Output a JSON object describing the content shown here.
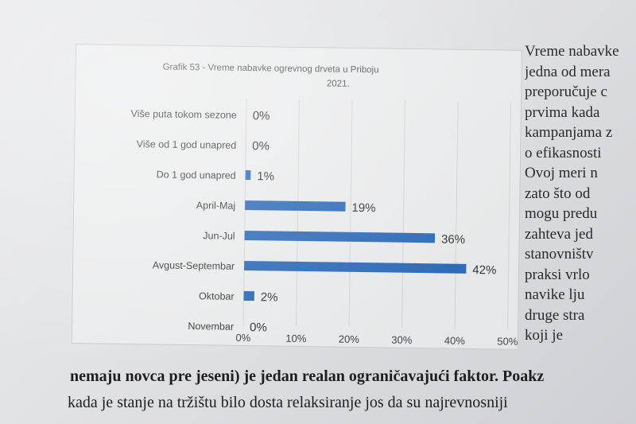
{
  "chart_data": {
    "type": "bar",
    "orientation": "horizontal",
    "title_line1": "Grafik 53 - Vreme nabavke ogrevnog drveta u Priboju",
    "title_line2": "2021.",
    "categories": [
      "Više puta tokom sezone",
      "Više od 1 god unapred",
      "Do 1 god unapred",
      "April-Maj",
      "Jun-Jul",
      "Avgust-Septembar",
      "Oktobar",
      "Novembar"
    ],
    "values": [
      0,
      0,
      1,
      19,
      36,
      42,
      2,
      0
    ],
    "value_labels": [
      "0%",
      "0%",
      "1%",
      "19%",
      "36%",
      "42%",
      "2%",
      "0%"
    ],
    "x_ticks": [
      "0%",
      "10%",
      "20%",
      "30%",
      "40%",
      "50%"
    ],
    "xlim": [
      0,
      50
    ],
    "grid": true,
    "bar_color": "#2e6bb8"
  },
  "side_text": [
    "Vreme nabavke",
    "jedna od mera",
    "preporučuje  c",
    "prvima   kada",
    "kampanjama z",
    "o efikasnosti",
    "Ovoj meri n",
    "zato što od",
    "mogu predu",
    "zahteva jed",
    "stanovništv",
    "praksi vrlo",
    "navike lju",
    "druge stra",
    "koji  je"
  ],
  "bottom_text": {
    "line1": "nemaju novca pre jeseni) je jedan realan ograničavajući faktor. Poakz",
    "line2": "kada je stanje na tržištu bilo dosta relaksiranje jos da su najrevnosniji"
  }
}
